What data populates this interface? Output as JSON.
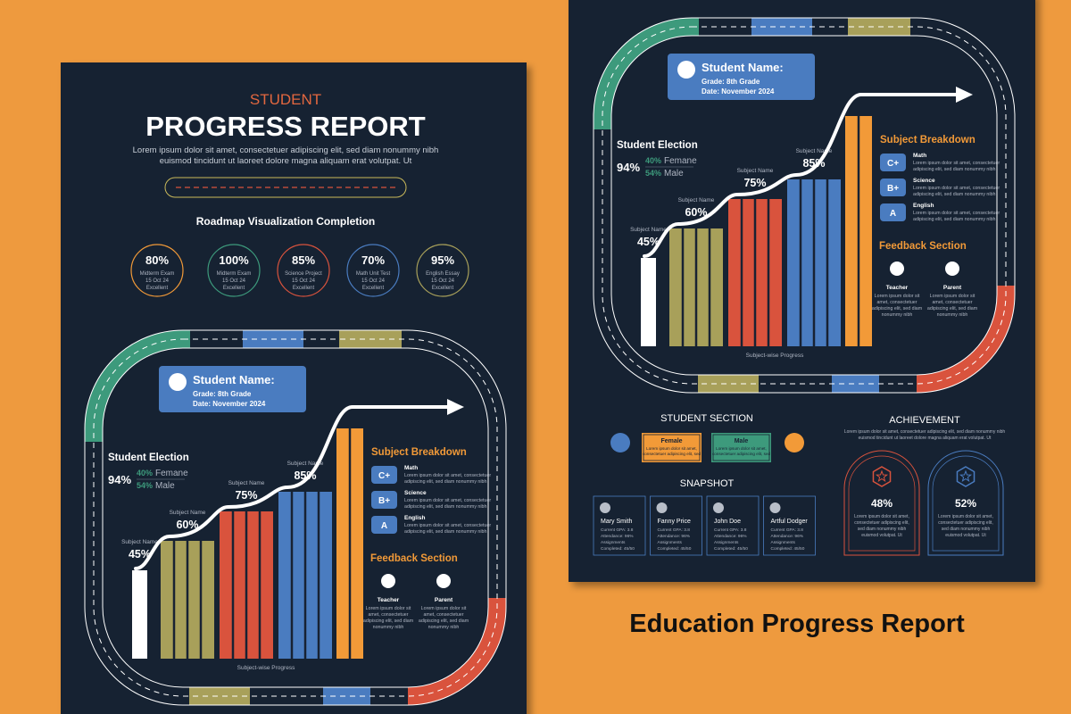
{
  "title": "Education Progress Report",
  "report": {
    "kicker": "STUDENT",
    "title": "PROGRESS REPORT",
    "intro": [
      "Lorem ipsum dolor sit amet, consectetuer adipiscing elit, sed diam nonummy nibh",
      "euismod tincidunt ut laoreet dolore magna aliquam erat volutpat. Ut"
    ]
  },
  "roadmap": {
    "title": "Roadmap Visualization Completion",
    "items": [
      {
        "value": "80%",
        "label": "Midterm Exam",
        "date": "15 Oct 24",
        "status": "Excellent"
      },
      {
        "value": "100%",
        "label": "Midterm Exam",
        "date": "15 Oct 24",
        "status": "Excellent"
      },
      {
        "value": "85%",
        "label": "Science Project",
        "date": "15 Oct 24",
        "status": "Excellent"
      },
      {
        "value": "70%",
        "label": "Math Unit Test",
        "date": "15 Oct 24",
        "status": "Excellent"
      },
      {
        "value": "95%",
        "label": "English Essay",
        "date": "15 Oct 24",
        "status": "Excellent"
      }
    ]
  },
  "panel": {
    "name_card": {
      "title": "Student Name:",
      "grade": "Grade: 8th Grade",
      "date": "Date: November 2024"
    },
    "election": {
      "title": "Student Election",
      "total": "94%",
      "rows": [
        {
          "value": "40%",
          "label": "Femane"
        },
        {
          "value": "54%",
          "label": "Male"
        }
      ]
    },
    "subjects": [
      {
        "name": "Subject Name",
        "value": 45,
        "label": "45%"
      },
      {
        "name": "Subject Name",
        "value": 60,
        "label": "60%"
      },
      {
        "name": "Subject Name",
        "value": 75,
        "label": "75%"
      },
      {
        "name": "Subject Name",
        "value": 85,
        "label": "85%"
      }
    ],
    "chart_caption": "Subject-wise Progress",
    "breakdown": {
      "title": "Subject Breakdown",
      "rows": [
        {
          "grade": "C+",
          "subject": "Math",
          "text": [
            "Lorem ipsum dolor sit amet, consectetuer",
            "adipiscing elit, sed diam nonummy nibh"
          ]
        },
        {
          "grade": "B+",
          "subject": "Science",
          "text": [
            "Lorem ipsum dolor sit amet, consectetuer",
            "adipiscing elit, sed diam nonummy nibh"
          ]
        },
        {
          "grade": "A",
          "subject": "English",
          "text": [
            "Lorem ipsum dolor sit amet, consectetuer",
            "adipiscing elit, sed diam nonummy nibh"
          ]
        }
      ]
    },
    "feedback": {
      "title": "Feedback Section",
      "items": [
        {
          "role": "Teacher",
          "text": [
            "Lorem ipsum dolor sit",
            "amet, consectetuer",
            "adipiscing elit, sed diam",
            "nonummy nibh"
          ]
        },
        {
          "role": "Parent",
          "text": [
            "Lorem ipsum dolor sit",
            "amet, consectetuer",
            "adipiscing elit, sed diam",
            "nonummy nibh"
          ]
        }
      ]
    }
  },
  "student_section": {
    "title": "STUDENT SECTION",
    "cards": [
      {
        "label": "Female",
        "text": [
          "Lorem ipsum dolor sit amet,",
          "consectetuer adipiscing elit, sed"
        ]
      },
      {
        "label": "Male",
        "text": [
          "Lorem ipsum dolor sit amet,",
          "consectetuer adipiscing elit, sed"
        ]
      }
    ]
  },
  "snapshot": {
    "title": "SNAPSHOT",
    "students": [
      {
        "name": "Mary Smith",
        "lines": [
          "Current GPA: 3.8",
          "Attendance: 96%",
          "Assignments",
          "Completed: 45/50"
        ]
      },
      {
        "name": "Fanny Price",
        "lines": [
          "Current GPA: 3.8",
          "Attendance: 96%",
          "Assignments",
          "Completed: 45/50"
        ]
      },
      {
        "name": "John Doe",
        "lines": [
          "Current GPA: 3.8",
          "Attendance: 96%",
          "Assignments",
          "Completed: 45/50"
        ]
      },
      {
        "name": "Artful Dodger",
        "lines": [
          "Current GPA: 3.8",
          "Attendance: 96%",
          "Assignments",
          "Completed: 45/50"
        ]
      }
    ]
  },
  "achievement": {
    "title": "ACHIEVEMENT",
    "text": [
      "Lorem ipsum dolor sit amet, consectetuer adipiscing elit, sed diam nonummy nibh",
      "euismod tincidunt ut laoreet dolore magna aliquam erat volutpat. Ut"
    ],
    "items": [
      {
        "value": "48%",
        "text": [
          "Lorem ipsum dolor sit amet,",
          "consectetuer adipiscing elit,",
          "sed diam nonummy nibh",
          "euismod volutpat. Ut"
        ]
      },
      {
        "value": "52%",
        "text": [
          "Lorem ipsum dolor sit amet,",
          "consectetuer adipiscing elit,",
          "sed diam nonummy nibh",
          "euismod volutpat. Ut"
        ]
      }
    ]
  }
}
